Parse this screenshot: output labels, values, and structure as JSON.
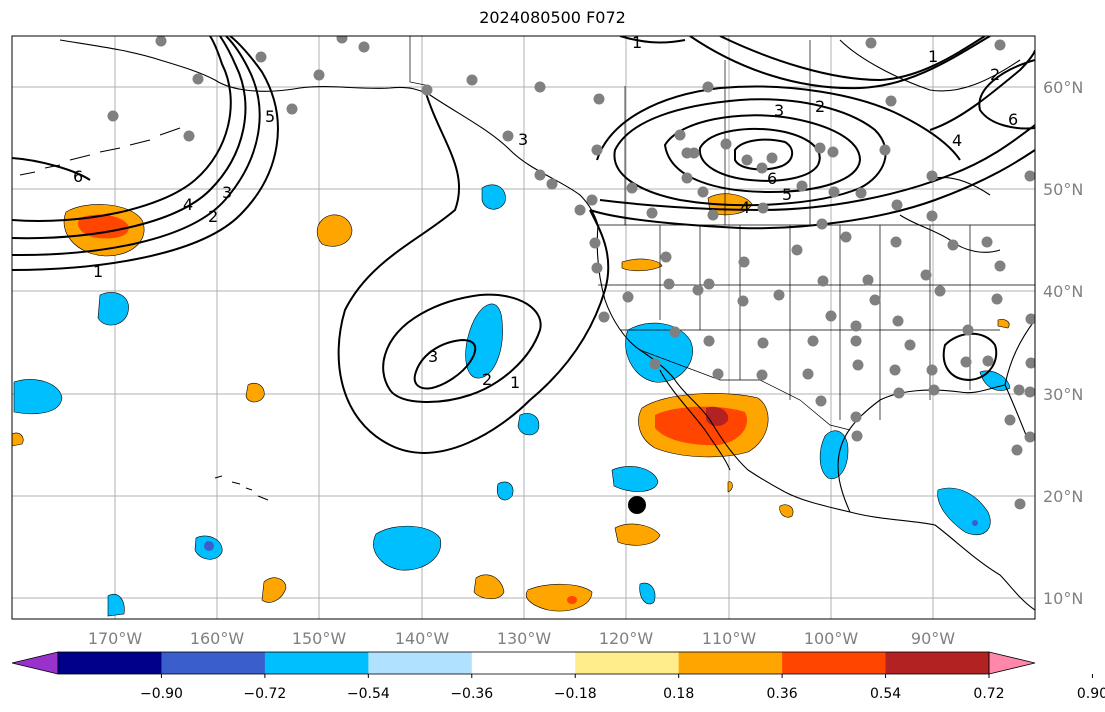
{
  "title": "2024080500 F072",
  "latitude_labels": [
    "60°N",
    "50°N",
    "40°N",
    "30°N",
    "20°N",
    "10°N"
  ],
  "longitude_labels": [
    "170°W",
    "160°W",
    "150°W",
    "140°W",
    "130°W",
    "120°W",
    "110°W",
    "100°W",
    "90°W"
  ],
  "colorbar": {
    "tick_labels": [
      "−0.90",
      "−0.72",
      "−0.54",
      "−0.36",
      "−0.18",
      "0.18",
      "0.36",
      "0.54",
      "0.72",
      "0.90"
    ],
    "colors": [
      "#9932cc",
      "#00008b",
      "#3a5fcd",
      "#00bfff",
      "#b0e2ff",
      "#ffffff",
      "#ffec8b",
      "#ffa500",
      "#ff4500",
      "#b22222",
      "#ff88aa"
    ]
  },
  "contour_labels": [
    "1",
    "2",
    "3",
    "4",
    "5",
    "6",
    "1",
    "2",
    "3",
    "4",
    "6",
    "1",
    "2",
    "3",
    "4",
    "5",
    "6",
    "1",
    "2",
    "3"
  ],
  "colors": {
    "land_lines": "#000000",
    "grid": "#b0b0b0",
    "station": "#808080",
    "contour": "#000000"
  },
  "marker": "black-dot"
}
